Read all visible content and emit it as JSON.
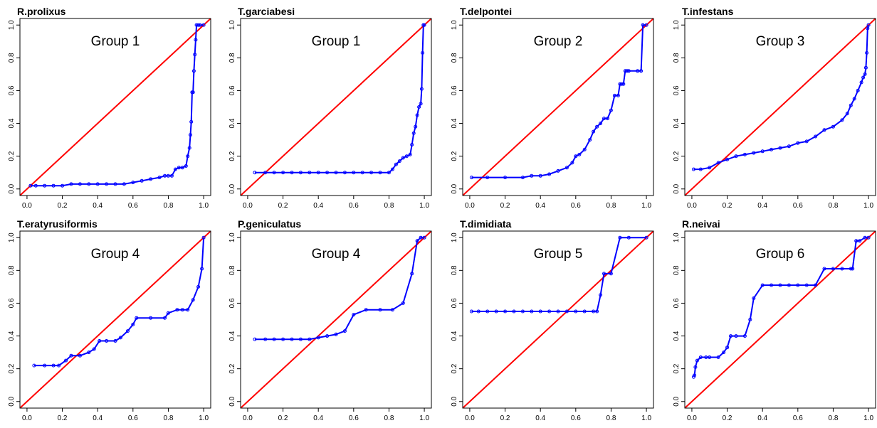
{
  "chart_data": [
    {
      "type": "line",
      "title": "R.prolixus",
      "annotation": "Group 1",
      "xlim": [
        0,
        1
      ],
      "ylim": [
        0,
        1
      ],
      "x_ticks": [
        "0.0",
        "0.2",
        "0.4",
        "0.6",
        "0.8",
        "1.0"
      ],
      "y_ticks": [
        "0.0",
        "0.2",
        "0.4",
        "0.6",
        "0.8",
        "1.0"
      ],
      "reference_line": "y = x",
      "colors": {
        "curve": "#0000ff",
        "reference": "#ff0000"
      },
      "x": [
        0.02,
        0.05,
        0.1,
        0.15,
        0.2,
        0.25,
        0.3,
        0.35,
        0.4,
        0.45,
        0.5,
        0.55,
        0.6,
        0.65,
        0.7,
        0.75,
        0.78,
        0.8,
        0.82,
        0.84,
        0.86,
        0.88,
        0.9,
        0.91,
        0.92,
        0.925,
        0.93,
        0.935,
        0.94,
        0.945,
        0.95,
        0.955,
        0.96,
        0.97,
        0.98,
        1.0
      ],
      "y": [
        0.02,
        0.02,
        0.02,
        0.02,
        0.02,
        0.03,
        0.03,
        0.03,
        0.03,
        0.03,
        0.03,
        0.03,
        0.04,
        0.05,
        0.06,
        0.07,
        0.08,
        0.08,
        0.08,
        0.12,
        0.13,
        0.13,
        0.14,
        0.2,
        0.25,
        0.33,
        0.41,
        0.59,
        0.59,
        0.72,
        0.82,
        0.91,
        1.0,
        1.0,
        1.0,
        1.0
      ]
    },
    {
      "type": "line",
      "title": "T.garciabesi",
      "annotation": "Group 1",
      "xlim": [
        0,
        1
      ],
      "ylim": [
        0,
        1
      ],
      "x_ticks": [
        "0.0",
        "0.2",
        "0.4",
        "0.6",
        "0.8",
        "1.0"
      ],
      "y_ticks": [
        "0.0",
        "0.2",
        "0.4",
        "0.6",
        "0.8",
        "1.0"
      ],
      "reference_line": "y = x",
      "colors": {
        "curve": "#0000ff",
        "reference": "#ff0000"
      },
      "x": [
        0.04,
        0.1,
        0.15,
        0.2,
        0.25,
        0.3,
        0.35,
        0.4,
        0.45,
        0.5,
        0.55,
        0.6,
        0.65,
        0.7,
        0.75,
        0.8,
        0.82,
        0.84,
        0.86,
        0.88,
        0.9,
        0.92,
        0.93,
        0.94,
        0.95,
        0.96,
        0.97,
        0.98,
        0.985,
        0.99,
        0.995,
        1.0
      ],
      "y": [
        0.1,
        0.1,
        0.1,
        0.1,
        0.1,
        0.1,
        0.1,
        0.1,
        0.1,
        0.1,
        0.1,
        0.1,
        0.1,
        0.1,
        0.1,
        0.1,
        0.12,
        0.15,
        0.17,
        0.19,
        0.2,
        0.21,
        0.27,
        0.34,
        0.38,
        0.45,
        0.5,
        0.52,
        0.61,
        0.83,
        1.0,
        1.0
      ]
    },
    {
      "type": "line",
      "title": "T.delpontei",
      "annotation": "Group 2",
      "xlim": [
        0,
        1
      ],
      "ylim": [
        0,
        1
      ],
      "x_ticks": [
        "0.0",
        "0.2",
        "0.4",
        "0.6",
        "0.8",
        "1.0"
      ],
      "y_ticks": [
        "0.0",
        "0.2",
        "0.4",
        "0.6",
        "0.8",
        "1.0"
      ],
      "reference_line": "y = x",
      "colors": {
        "curve": "#0000ff",
        "reference": "#ff0000"
      },
      "x": [
        0.01,
        0.1,
        0.2,
        0.3,
        0.35,
        0.4,
        0.45,
        0.5,
        0.55,
        0.58,
        0.6,
        0.62,
        0.65,
        0.68,
        0.7,
        0.72,
        0.74,
        0.76,
        0.78,
        0.8,
        0.82,
        0.84,
        0.85,
        0.86,
        0.87,
        0.88,
        0.89,
        0.9,
        0.95,
        0.97,
        0.98,
        1.0
      ],
      "y": [
        0.07,
        0.07,
        0.07,
        0.07,
        0.08,
        0.08,
        0.09,
        0.11,
        0.13,
        0.16,
        0.2,
        0.21,
        0.24,
        0.3,
        0.35,
        0.38,
        0.4,
        0.43,
        0.43,
        0.48,
        0.57,
        0.57,
        0.64,
        0.64,
        0.64,
        0.72,
        0.72,
        0.72,
        0.72,
        0.72,
        1.0,
        1.0
      ]
    },
    {
      "type": "line",
      "title": "T.infestans",
      "annotation": "Group 3",
      "xlim": [
        0,
        1
      ],
      "ylim": [
        0,
        1
      ],
      "x_ticks": [
        "0.0",
        "0.2",
        "0.4",
        "0.6",
        "0.8",
        "1.0"
      ],
      "y_ticks": [
        "0.0",
        "0.2",
        "0.4",
        "0.6",
        "0.8",
        "1.0"
      ],
      "reference_line": "y = x",
      "colors": {
        "curve": "#0000ff",
        "reference": "#ff0000"
      },
      "x": [
        0.01,
        0.05,
        0.1,
        0.15,
        0.2,
        0.25,
        0.3,
        0.35,
        0.4,
        0.45,
        0.5,
        0.55,
        0.6,
        0.65,
        0.7,
        0.75,
        0.8,
        0.85,
        0.88,
        0.9,
        0.92,
        0.94,
        0.96,
        0.97,
        0.98,
        0.985,
        0.99,
        0.995,
        1.0
      ],
      "y": [
        0.12,
        0.12,
        0.13,
        0.16,
        0.18,
        0.2,
        0.21,
        0.22,
        0.23,
        0.24,
        0.25,
        0.26,
        0.28,
        0.29,
        0.32,
        0.36,
        0.38,
        0.42,
        0.46,
        0.51,
        0.55,
        0.6,
        0.65,
        0.68,
        0.7,
        0.74,
        0.83,
        0.98,
        1.0
      ]
    },
    {
      "type": "line",
      "title": "T.eratyrusiformis",
      "annotation": "Group 4",
      "xlim": [
        0,
        1
      ],
      "ylim": [
        0,
        1
      ],
      "x_ticks": [
        "0.0",
        "0.2",
        "0.4",
        "0.6",
        "0.8",
        "1.0"
      ],
      "y_ticks": [
        "0.0",
        "0.2",
        "0.4",
        "0.6",
        "0.8",
        "1.0"
      ],
      "reference_line": "y = x",
      "colors": {
        "curve": "#0000ff",
        "reference": "#ff0000"
      },
      "x": [
        0.04,
        0.1,
        0.15,
        0.18,
        0.22,
        0.25,
        0.3,
        0.35,
        0.38,
        0.41,
        0.45,
        0.5,
        0.53,
        0.57,
        0.6,
        0.62,
        0.7,
        0.78,
        0.8,
        0.85,
        0.88,
        0.91,
        0.94,
        0.97,
        0.99,
        1.0
      ],
      "y": [
        0.22,
        0.22,
        0.22,
        0.22,
        0.25,
        0.28,
        0.28,
        0.3,
        0.32,
        0.37,
        0.37,
        0.37,
        0.39,
        0.43,
        0.47,
        0.51,
        0.51,
        0.51,
        0.54,
        0.56,
        0.56,
        0.56,
        0.62,
        0.7,
        0.81,
        1.0
      ]
    },
    {
      "type": "line",
      "title": "P.geniculatus",
      "annotation": "Group 4",
      "xlim": [
        0,
        1
      ],
      "ylim": [
        0,
        1
      ],
      "x_ticks": [
        "0.0",
        "0.2",
        "0.4",
        "0.6",
        "0.8",
        "1.0"
      ],
      "y_ticks": [
        "0.0",
        "0.2",
        "0.4",
        "0.6",
        "0.8",
        "1.0"
      ],
      "reference_line": "y = x",
      "colors": {
        "curve": "#0000ff",
        "reference": "#ff0000"
      },
      "x": [
        0.04,
        0.1,
        0.15,
        0.2,
        0.25,
        0.3,
        0.35,
        0.4,
        0.45,
        0.5,
        0.55,
        0.6,
        0.67,
        0.75,
        0.82,
        0.88,
        0.93,
        0.96,
        0.98,
        1.0
      ],
      "y": [
        0.38,
        0.38,
        0.38,
        0.38,
        0.38,
        0.38,
        0.38,
        0.39,
        0.4,
        0.41,
        0.43,
        0.53,
        0.56,
        0.56,
        0.56,
        0.6,
        0.78,
        0.98,
        1.0,
        1.0
      ]
    },
    {
      "type": "line",
      "title": "T.dimidiata",
      "annotation": "Group 5",
      "xlim": [
        0,
        1
      ],
      "ylim": [
        0,
        1
      ],
      "x_ticks": [
        "0.0",
        "0.2",
        "0.4",
        "0.6",
        "0.8",
        "1.0"
      ],
      "y_ticks": [
        "0.0",
        "0.2",
        "0.4",
        "0.6",
        "0.8",
        "1.0"
      ],
      "reference_line": "y = x",
      "colors": {
        "curve": "#0000ff",
        "reference": "#ff0000"
      },
      "x": [
        0.01,
        0.05,
        0.1,
        0.15,
        0.2,
        0.25,
        0.3,
        0.35,
        0.4,
        0.45,
        0.5,
        0.55,
        0.6,
        0.65,
        0.7,
        0.72,
        0.74,
        0.76,
        0.8,
        0.85,
        0.9,
        1.0
      ],
      "y": [
        0.55,
        0.55,
        0.55,
        0.55,
        0.55,
        0.55,
        0.55,
        0.55,
        0.55,
        0.55,
        0.55,
        0.55,
        0.55,
        0.55,
        0.55,
        0.55,
        0.65,
        0.78,
        0.78,
        1.0,
        1.0,
        1.0
      ]
    },
    {
      "type": "line",
      "title": "R.neivai",
      "annotation": "Group 6",
      "xlim": [
        0,
        1
      ],
      "ylim": [
        0,
        1
      ],
      "x_ticks": [
        "0.0",
        "0.2",
        "0.4",
        "0.6",
        "0.8",
        "1.0"
      ],
      "y_ticks": [
        "0.0",
        "0.2",
        "0.4",
        "0.6",
        "0.8",
        "1.0"
      ],
      "reference_line": "y = x",
      "colors": {
        "curve": "#0000ff",
        "reference": "#ff0000"
      },
      "x": [
        0.01,
        0.015,
        0.02,
        0.03,
        0.05,
        0.08,
        0.1,
        0.15,
        0.18,
        0.2,
        0.22,
        0.25,
        0.3,
        0.33,
        0.35,
        0.4,
        0.45,
        0.5,
        0.55,
        0.6,
        0.65,
        0.7,
        0.75,
        0.8,
        0.85,
        0.9,
        0.91,
        0.93,
        0.95,
        0.98,
        1.0
      ],
      "y": [
        0.15,
        0.16,
        0.21,
        0.25,
        0.27,
        0.27,
        0.27,
        0.27,
        0.3,
        0.33,
        0.4,
        0.4,
        0.4,
        0.5,
        0.63,
        0.71,
        0.71,
        0.71,
        0.71,
        0.71,
        0.71,
        0.71,
        0.81,
        0.81,
        0.81,
        0.81,
        0.81,
        0.98,
        0.98,
        1.0,
        1.0
      ]
    }
  ]
}
